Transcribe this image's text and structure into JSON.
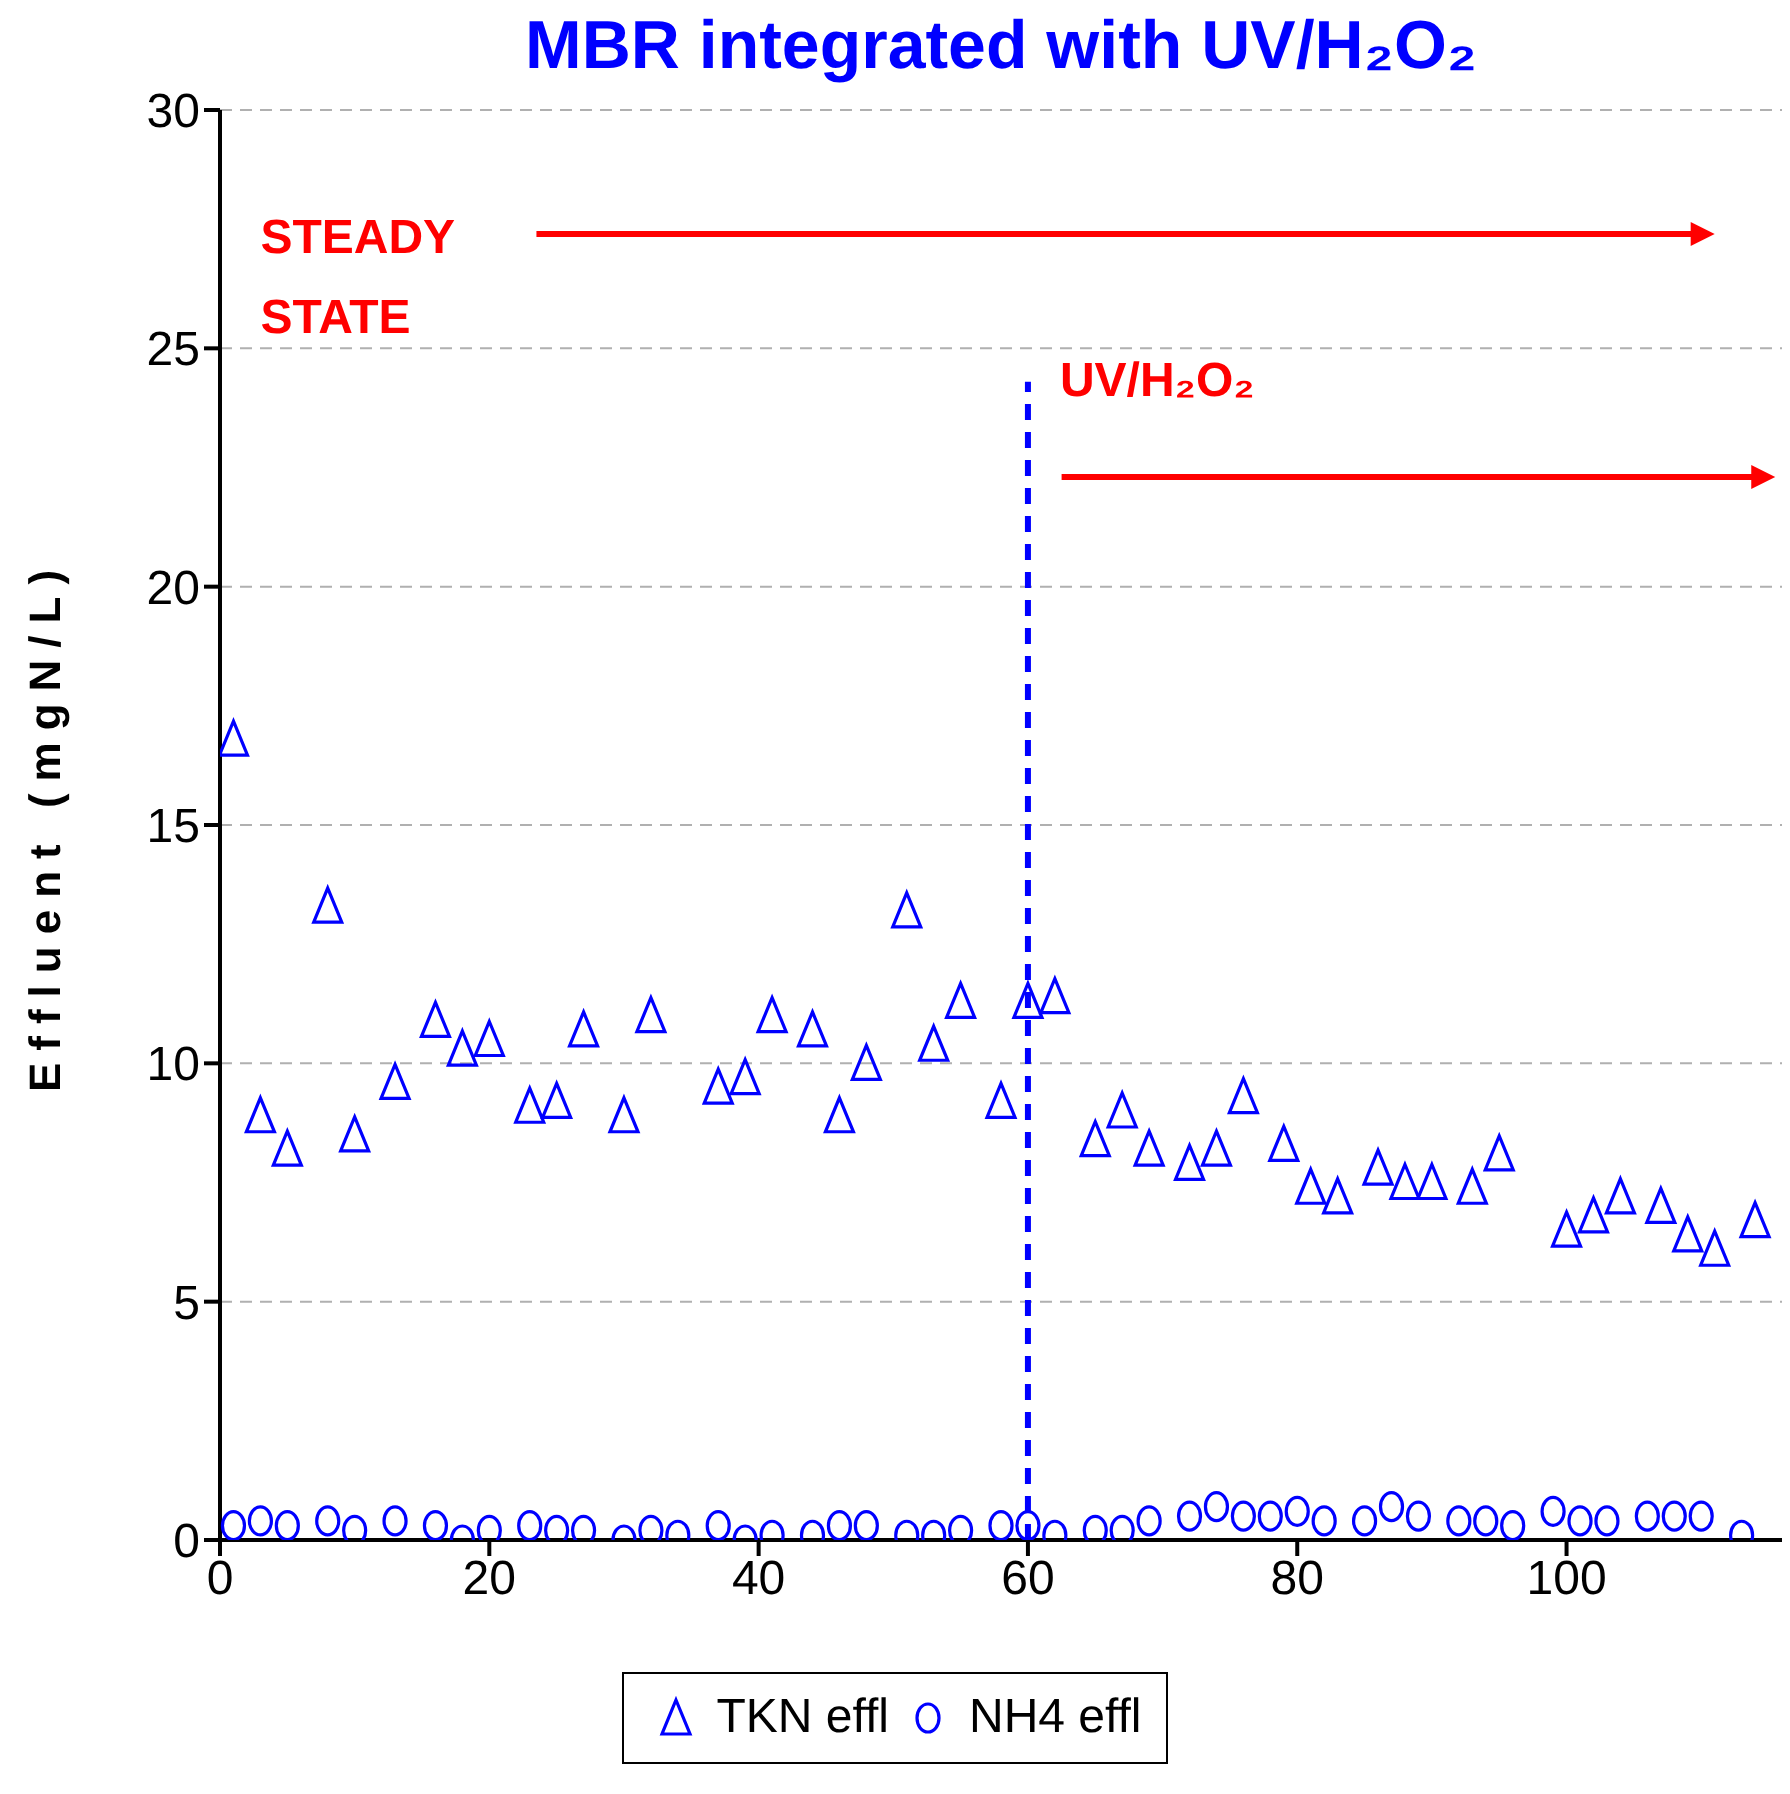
{
  "chart_data": {
    "type": "scatter",
    "title": "MBR integrated with UV/H₂O₂",
    "ylabel": "Effluent (mgN/L)",
    "xlim": [
      0,
      116
    ],
    "xticks": [
      0,
      20,
      40,
      60,
      80,
      100
    ],
    "ylim": [
      0,
      30
    ],
    "yticks": [
      0,
      5,
      10,
      15,
      20,
      25,
      30
    ],
    "grid": "y",
    "legend": "bottom",
    "annotations": [
      "STEADY STATE"
    ],
    "ref_lines": [
      {
        "axis": "x",
        "value": 60,
        "label": "UV/H₂O₂",
        "color": "#0000ff",
        "line_style": "dashed"
      }
    ],
    "series": [
      {
        "name": "TKN effl",
        "color": "#0000ff",
        "marker": "triangle",
        "x": [
          1,
          3,
          5,
          8,
          10,
          13,
          16,
          18,
          20,
          23,
          25,
          27,
          30,
          32,
          37,
          39,
          41,
          44,
          46,
          48,
          51,
          53,
          55,
          58,
          60,
          62,
          65,
          67,
          69,
          72,
          74,
          76,
          79,
          81,
          83,
          86,
          88,
          90,
          93,
          95,
          100,
          102,
          104,
          107,
          109,
          111,
          114
        ],
        "values": [
          16.8,
          8.9,
          8.2,
          13.3,
          8.5,
          9.6,
          10.9,
          10.3,
          10.5,
          9.1,
          9.2,
          10.7,
          8.9,
          11.0,
          9.5,
          9.7,
          11.0,
          10.7,
          8.9,
          10.0,
          13.2,
          10.4,
          11.3,
          9.2,
          11.3,
          11.4,
          8.4,
          9.0,
          8.2,
          7.9,
          8.2,
          9.3,
          8.3,
          7.4,
          7.2,
          7.8,
          7.5,
          7.5,
          7.4,
          8.1,
          6.5,
          6.8,
          7.2,
          7.0,
          6.4,
          6.1,
          6.7
        ]
      },
      {
        "name": "NH4 effl",
        "color": "#0000ff",
        "marker": "circle",
        "x": [
          1,
          3,
          5,
          8,
          10,
          13,
          16,
          18,
          20,
          23,
          25,
          27,
          30,
          32,
          34,
          37,
          39,
          41,
          44,
          46,
          48,
          51,
          53,
          55,
          58,
          60,
          62,
          65,
          67,
          69,
          72,
          74,
          76,
          78,
          80,
          82,
          85,
          87,
          89,
          92,
          94,
          96,
          99,
          101,
          103,
          106,
          108,
          110,
          113
        ],
        "values": [
          0.3,
          0.4,
          0.3,
          0.4,
          0.2,
          0.4,
          0.3,
          0.0,
          0.2,
          0.3,
          0.2,
          0.2,
          0.0,
          0.2,
          0.1,
          0.3,
          0.0,
          0.1,
          0.1,
          0.3,
          0.3,
          0.1,
          0.1,
          0.2,
          0.3,
          0.3,
          0.1,
          0.2,
          0.2,
          0.4,
          0.5,
          0.7,
          0.5,
          0.5,
          0.6,
          0.4,
          0.4,
          0.7,
          0.5,
          0.4,
          0.4,
          0.3,
          0.6,
          0.4,
          0.4,
          0.5,
          0.5,
          0.5,
          0.1
        ]
      }
    ]
  }
}
